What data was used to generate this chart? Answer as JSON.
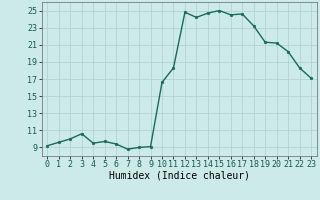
{
  "x": [
    0,
    1,
    2,
    3,
    4,
    5,
    6,
    7,
    8,
    9,
    10,
    11,
    12,
    13,
    14,
    15,
    16,
    17,
    18,
    19,
    20,
    21,
    22,
    23
  ],
  "y": [
    9.2,
    9.6,
    10.0,
    10.6,
    9.5,
    9.7,
    9.4,
    8.8,
    9.0,
    9.1,
    16.6,
    18.3,
    24.8,
    24.2,
    24.7,
    25.0,
    24.5,
    24.6,
    23.2,
    21.3,
    21.2,
    20.2,
    18.3,
    17.1
  ],
  "line_color": "#1a6b5a",
  "marker": "o",
  "markersize": 1.8,
  "linewidth": 1.0,
  "xlabel": "Humidex (Indice chaleur)",
  "xlim": [
    -0.5,
    23.5
  ],
  "ylim": [
    8,
    26
  ],
  "yticks": [
    9,
    11,
    13,
    15,
    17,
    19,
    21,
    23,
    25
  ],
  "xtick_labels": [
    "0",
    "1",
    "2",
    "3",
    "4",
    "5",
    "6",
    "7",
    "8",
    "9",
    "10",
    "11",
    "12",
    "13",
    "14",
    "15",
    "16",
    "17",
    "18",
    "19",
    "20",
    "21",
    "22",
    "23"
  ],
  "bg_color": "#cceae7",
  "grid_color": "#b0d0cd",
  "tick_fontsize": 6.0,
  "xlabel_fontsize": 7.0
}
